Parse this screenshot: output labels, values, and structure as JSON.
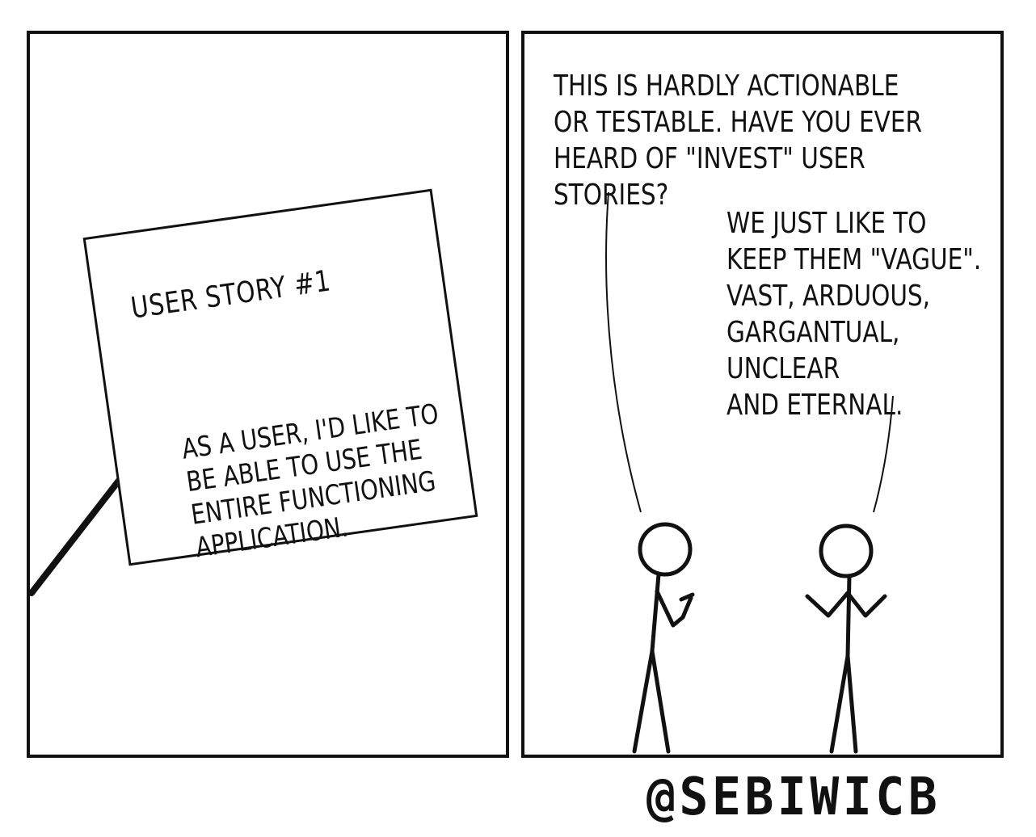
{
  "panel_left": {
    "card": {
      "title": "USER STORY #1",
      "body": "AS A USER, I'D LIKE TO\nBE ABLE TO USE THE\nENTIRE FUNCTIONING\nAPPLICATION."
    }
  },
  "panel_right": {
    "speech_1": "THIS IS HARDLY ACTIONABLE\nOR TESTABLE. HAVE YOU EVER\nHEARD OF \"INVEST\" USER STORIES?",
    "speech_2": "WE JUST LIKE TO\nKEEP THEM \"VAGUE\".\nVAST, ARDUOUS,\nGARGANTUAL, UNCLEAR\nAND ETERNAL."
  },
  "credit": "@SEBIWICB",
  "colors": {
    "ink": "#111111",
    "paper": "#ffffff"
  }
}
